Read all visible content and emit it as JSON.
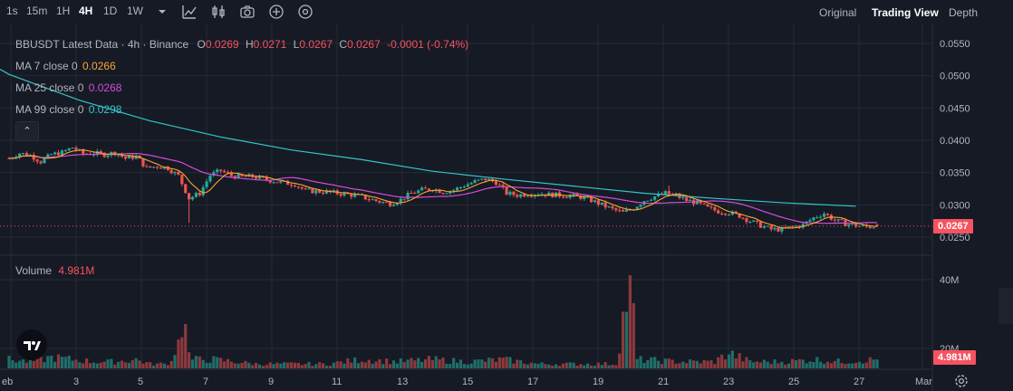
{
  "toolbar": {
    "intervals": [
      {
        "label": "1s",
        "active": false
      },
      {
        "label": "15m",
        "active": false
      },
      {
        "label": "1H",
        "active": false
      },
      {
        "label": "4H",
        "active": true
      },
      {
        "label": "1D",
        "active": false
      },
      {
        "label": "1W",
        "active": false
      }
    ],
    "icons": [
      "chevron-down-icon",
      "indicators-icon",
      "candle-type-icon",
      "camera-icon",
      "add-icon",
      "settings-icon"
    ],
    "views": [
      {
        "label": "Original",
        "active": false
      },
      {
        "label": "Trading View",
        "active": true
      },
      {
        "label": "Depth",
        "active": false
      }
    ]
  },
  "legend": {
    "symbol": "BBUSDT Latest Data · 4h · Binance",
    "open_label": "O",
    "open": "0.0269",
    "high_label": "H",
    "high": "0.0271",
    "low_label": "L",
    "low": "0.0267",
    "close_label": "C",
    "close": "0.0267",
    "change": "-0.0001 (-0.74%)",
    "ma7_label": "MA 7 close 0",
    "ma7_value": "0.0266",
    "ma7_color": "#f7a531",
    "ma25_label": "MA 25 close 0",
    "ma25_value": "0.0268",
    "ma25_color": "#d04ed6",
    "ma99_label": "MA 99 close 0",
    "ma99_value": "0.0298",
    "ma99_color": "#34c5c8",
    "collapse_glyph": "⌃",
    "volume_label": "Volume",
    "volume_value": "4.981M"
  },
  "colors": {
    "up": "#26a69a",
    "down": "#ef5350",
    "vol_up": "#1f6e6a",
    "vol_down": "#8c3a3d",
    "background": "#161a25",
    "grid": "#252a35"
  },
  "price_axis": {
    "ticks": [
      "0.0550",
      "0.0500",
      "0.0450",
      "0.0400",
      "0.0350",
      "0.0300",
      "0.0250"
    ],
    "current_price": "0.0267"
  },
  "volume_axis": {
    "ticks": [
      "40M",
      "20M"
    ],
    "current_volume": "4.981M"
  },
  "time_axis": {
    "labels": [
      "eb",
      "3",
      "5",
      "7",
      "9",
      "11",
      "13",
      "15",
      "17",
      "19",
      "21",
      "23",
      "25",
      "27",
      "Mar"
    ]
  },
  "chart_data": {
    "type": "candlestick",
    "title": "BBUSDT Latest Data · 4h · Binance",
    "ylim": [
      0.025,
      0.055
    ],
    "volume_ylim": [
      0,
      40
    ],
    "volume_unit": "M",
    "ohlc_last": {
      "open": 0.0269,
      "high": 0.0271,
      "low": 0.0267,
      "close": 0.0267
    },
    "close_path": [
      [
        0,
        0.0372
      ],
      [
        3,
        0.038
      ],
      [
        6,
        0.0377
      ],
      [
        9,
        0.0367
      ],
      [
        12,
        0.0378
      ],
      [
        15,
        0.0381
      ],
      [
        18,
        0.0389
      ],
      [
        21,
        0.0379
      ],
      [
        24,
        0.038
      ],
      [
        27,
        0.0378
      ],
      [
        30,
        0.0381
      ],
      [
        33,
        0.0372
      ],
      [
        36,
        0.0375
      ],
      [
        39,
        0.0357
      ],
      [
        42,
        0.036
      ],
      [
        45,
        0.0357
      ],
      [
        48,
        0.0345
      ],
      [
        51,
        0.031
      ],
      [
        54,
        0.0318
      ],
      [
        57,
        0.0346
      ],
      [
        60,
        0.0353
      ],
      [
        63,
        0.0345
      ],
      [
        66,
        0.0343
      ],
      [
        69,
        0.0344
      ],
      [
        72,
        0.034
      ],
      [
        75,
        0.0337
      ],
      [
        78,
        0.0334
      ],
      [
        81,
        0.0332
      ],
      [
        84,
        0.0322
      ],
      [
        87,
        0.0321
      ],
      [
        90,
        0.032
      ],
      [
        93,
        0.0318
      ],
      [
        96,
        0.0316
      ],
      [
        99,
        0.0314
      ],
      [
        102,
        0.0309
      ],
      [
        105,
        0.0305
      ],
      [
        108,
        0.0302
      ],
      [
        111,
        0.0308
      ],
      [
        114,
        0.0318
      ],
      [
        117,
        0.0323
      ],
      [
        120,
        0.0325
      ],
      [
        123,
        0.032
      ],
      [
        126,
        0.0323
      ],
      [
        129,
        0.033
      ],
      [
        132,
        0.0336
      ],
      [
        135,
        0.034
      ],
      [
        138,
        0.0335
      ],
      [
        141,
        0.0318
      ],
      [
        144,
        0.0315
      ],
      [
        147,
        0.0317
      ],
      [
        150,
        0.0318
      ],
      [
        153,
        0.0316
      ],
      [
        156,
        0.0315
      ],
      [
        159,
        0.0314
      ],
      [
        162,
        0.0312
      ],
      [
        165,
        0.0307
      ],
      [
        168,
        0.03
      ],
      [
        171,
        0.0293
      ],
      [
        174,
        0.0288
      ],
      [
        177,
        0.0295
      ],
      [
        180,
        0.0307
      ],
      [
        183,
        0.0313
      ],
      [
        186,
        0.0318
      ],
      [
        189,
        0.0314
      ],
      [
        192,
        0.0307
      ],
      [
        195,
        0.0303
      ],
      [
        198,
        0.0295
      ],
      [
        201,
        0.029
      ],
      [
        204,
        0.0288
      ],
      [
        207,
        0.0283
      ],
      [
        210,
        0.0275
      ],
      [
        213,
        0.0268
      ],
      [
        216,
        0.0262
      ],
      [
        219,
        0.0262
      ],
      [
        222,
        0.0266
      ],
      [
        225,
        0.0269
      ],
      [
        228,
        0.028
      ],
      [
        231,
        0.0287
      ],
      [
        234,
        0.0276
      ],
      [
        237,
        0.0271
      ],
      [
        240,
        0.0268
      ],
      [
        243,
        0.0266
      ],
      [
        246,
        0.0267
      ]
    ],
    "ma99": [
      [
        0,
        0.0502
      ],
      [
        20,
        0.0462
      ],
      [
        40,
        0.043
      ],
      [
        60,
        0.0405
      ],
      [
        80,
        0.0385
      ],
      [
        100,
        0.037
      ],
      [
        120,
        0.0352
      ],
      [
        140,
        0.034
      ],
      [
        160,
        0.0329
      ],
      [
        180,
        0.0318
      ],
      [
        200,
        0.031
      ],
      [
        220,
        0.0303
      ],
      [
        240,
        0.0298
      ]
    ],
    "volume_path": [
      [
        0,
        4
      ],
      [
        6,
        3
      ],
      [
        12,
        5
      ],
      [
        18,
        4
      ],
      [
        24,
        3
      ],
      [
        30,
        3
      ],
      [
        36,
        4
      ],
      [
        40,
        2
      ],
      [
        44,
        2
      ],
      [
        46,
        3
      ],
      [
        47,
        9
      ],
      [
        48,
        13
      ],
      [
        49,
        12
      ],
      [
        50,
        20
      ],
      [
        51,
        6
      ],
      [
        52,
        4
      ],
      [
        58,
        4
      ],
      [
        70,
        2
      ],
      [
        90,
        2
      ],
      [
        100,
        4
      ],
      [
        110,
        3
      ],
      [
        120,
        4
      ],
      [
        130,
        3
      ],
      [
        140,
        4
      ],
      [
        150,
        2
      ],
      [
        160,
        2
      ],
      [
        172,
        2
      ],
      [
        176,
        42
      ],
      [
        178,
        4
      ],
      [
        190,
        3
      ],
      [
        200,
        3
      ],
      [
        204,
        7
      ],
      [
        210,
        3
      ],
      [
        220,
        3
      ],
      [
        228,
        4
      ],
      [
        236,
        3
      ],
      [
        246,
        4
      ]
    ]
  }
}
